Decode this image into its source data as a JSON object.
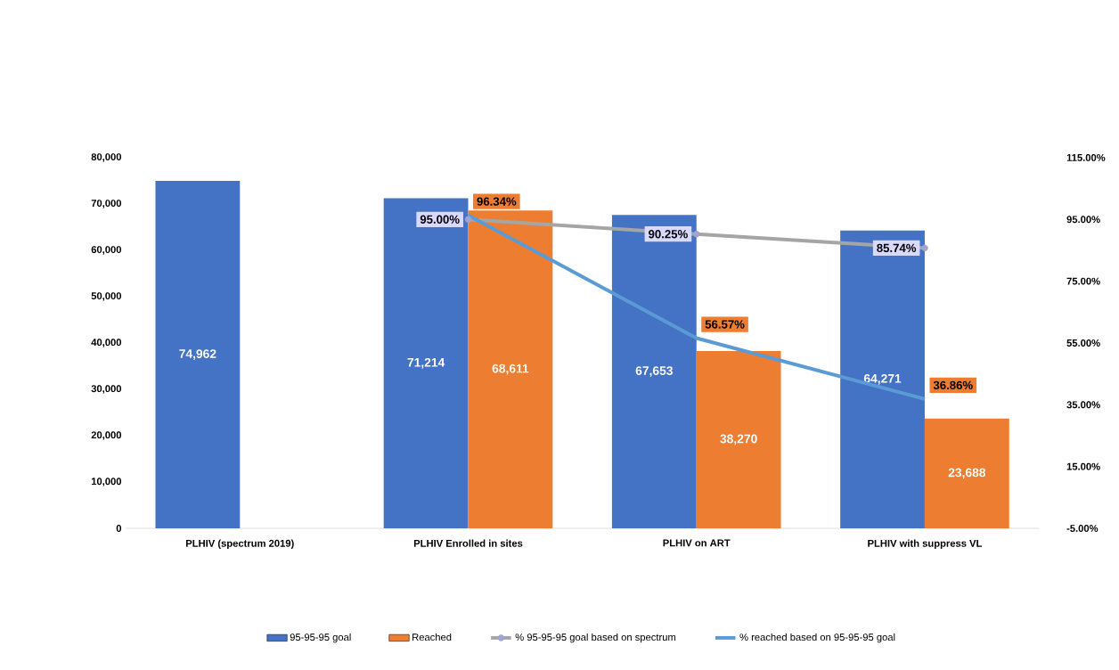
{
  "chart_data": {
    "type": "bar",
    "categories": [
      "PLHIV (spectrum 2019)",
      "PLHIV Enrolled in sites",
      "PLHIV on ART",
      "PLHIV with suppress VL"
    ],
    "series": [
      {
        "name": "95-95-95 goal",
        "type": "bar",
        "color": "#4472c4",
        "values": [
          74962,
          71214,
          67653,
          64271
        ],
        "value_labels": [
          "74,962",
          "71,214",
          "67,653",
          "64,271"
        ]
      },
      {
        "name": "Reached",
        "type": "bar",
        "color": "#ed7d31",
        "values": [
          null,
          68611,
          38270,
          23688
        ],
        "value_labels": [
          null,
          "68,611",
          "38,270",
          "23,688"
        ]
      },
      {
        "name": "% 95-95-95 goal based on spectrum",
        "type": "line",
        "axis": "y2",
        "marker": "circle",
        "color": "#a5a5a5",
        "values": [
          null,
          95.0,
          90.25,
          85.74
        ],
        "value_labels": [
          null,
          "95.00%",
          "90.25%",
          "85.74%"
        ]
      },
      {
        "name": "% reached based on 95-95-95 goal",
        "type": "line",
        "axis": "y2",
        "marker": "none",
        "color": "#5b9bd5",
        "values": [
          null,
          96.34,
          56.57,
          36.86
        ],
        "value_labels": [
          null,
          "96.34%",
          "56.57%",
          "36.86%"
        ]
      }
    ],
    "ylim": [
      0,
      80000
    ],
    "yticks": [
      {
        "value": 0,
        "label": "0"
      },
      {
        "value": 10000,
        "label": "10,000"
      },
      {
        "value": 20000,
        "label": "20,000"
      },
      {
        "value": 30000,
        "label": "30,000"
      },
      {
        "value": 40000,
        "label": "40,000"
      },
      {
        "value": 50000,
        "label": "50,000"
      },
      {
        "value": 60000,
        "label": "60,000"
      },
      {
        "value": 70000,
        "label": "70,000"
      },
      {
        "value": 80000,
        "label": "80,000"
      }
    ],
    "y2lim": [
      -5,
      115
    ],
    "y2ticks": [
      {
        "value": -5,
        "label": "-5.00%"
      },
      {
        "value": 15,
        "label": "15.00%"
      },
      {
        "value": 35,
        "label": "35.00%"
      },
      {
        "value": 55,
        "label": "55.00%"
      },
      {
        "value": 75,
        "label": "75.00%"
      },
      {
        "value": 95,
        "label": "95.00%"
      },
      {
        "value": 115,
        "label": "115.00%"
      }
    ],
    "grid": false,
    "legend": "bottom"
  }
}
